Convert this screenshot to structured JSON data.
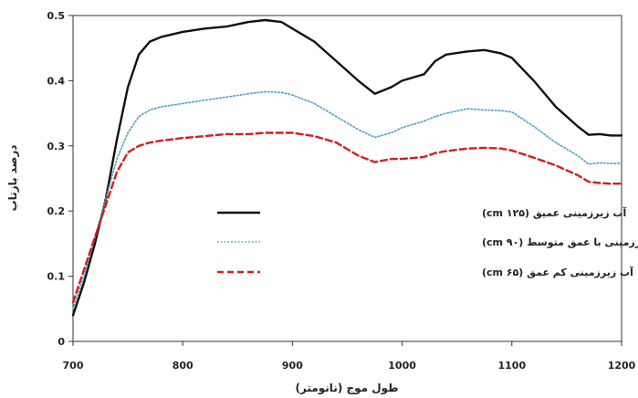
{
  "chart_data": {
    "type": "line",
    "xlabel": "طول موج (نانومتر)",
    "ylabel": "درصد بازتاب",
    "xlim": [
      700,
      1200
    ],
    "ylim": [
      0,
      0.5
    ],
    "xticks": [
      "700",
      "800",
      "900",
      "1000",
      "1100",
      "1200"
    ],
    "yticks": [
      "0",
      "0.1",
      "0.2",
      "0.3",
      "0.4",
      "0.5"
    ],
    "x": [
      700,
      710,
      720,
      730,
      740,
      750,
      760,
      770,
      780,
      800,
      820,
      840,
      860,
      875,
      890,
      900,
      920,
      940,
      960,
      975,
      990,
      1000,
      1020,
      1030,
      1040,
      1060,
      1075,
      1090,
      1100,
      1120,
      1140,
      1160,
      1170,
      1180,
      1190,
      1200
    ],
    "series": [
      {
        "name": "آب زیرزمینی عمیق (۱۲۵ cm)",
        "color": "#111111",
        "style": "solid",
        "values": [
          0.04,
          0.09,
          0.15,
          0.22,
          0.31,
          0.39,
          0.44,
          0.46,
          0.467,
          0.475,
          0.48,
          0.483,
          0.49,
          0.493,
          0.49,
          0.48,
          0.46,
          0.43,
          0.4,
          0.38,
          0.39,
          0.4,
          0.41,
          0.43,
          0.44,
          0.445,
          0.447,
          0.442,
          0.435,
          0.4,
          0.36,
          0.33,
          0.317,
          0.318,
          0.316,
          0.316
        ]
      },
      {
        "name": "آب زیرزمینی با عمق متوسط (۹۰ cm)",
        "color": "#4f9ec4",
        "style": "dotted",
        "values": [
          0.05,
          0.1,
          0.16,
          0.22,
          0.28,
          0.32,
          0.345,
          0.355,
          0.36,
          0.365,
          0.37,
          0.375,
          0.38,
          0.383,
          0.382,
          0.378,
          0.365,
          0.345,
          0.325,
          0.313,
          0.32,
          0.328,
          0.338,
          0.345,
          0.35,
          0.357,
          0.355,
          0.354,
          0.352,
          0.33,
          0.305,
          0.285,
          0.272,
          0.274,
          0.273,
          0.273
        ]
      },
      {
        "name": "آب زیرزمینی کم عمق (۶۵ cm)",
        "color": "#d32020",
        "style": "dashed",
        "values": [
          0.06,
          0.11,
          0.16,
          0.21,
          0.26,
          0.29,
          0.3,
          0.305,
          0.308,
          0.312,
          0.315,
          0.318,
          0.318,
          0.32,
          0.32,
          0.32,
          0.315,
          0.305,
          0.285,
          0.275,
          0.28,
          0.28,
          0.283,
          0.289,
          0.292,
          0.296,
          0.297,
          0.296,
          0.293,
          0.282,
          0.27,
          0.255,
          0.245,
          0.243,
          0.242,
          0.242
        ]
      }
    ],
    "grid": false,
    "legend": "center"
  }
}
